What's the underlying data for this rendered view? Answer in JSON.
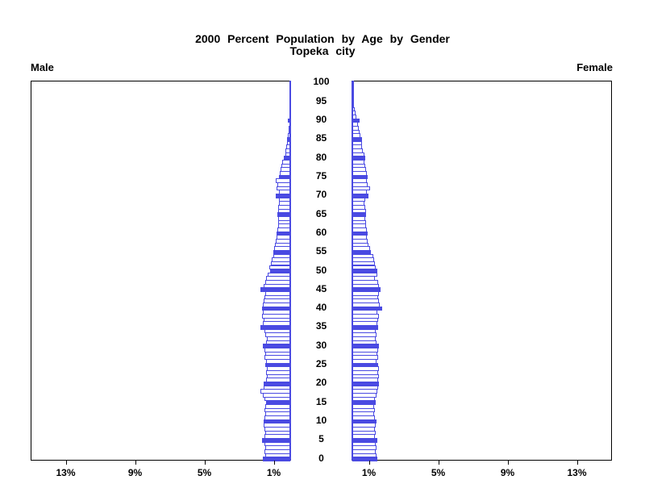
{
  "title": {
    "line1": "2000 Percent Population by Age by Gender",
    "line2": "Topeka city"
  },
  "panels": {
    "left_label": "Male",
    "right_label": "Female"
  },
  "axes": {
    "age_tick_labels": [
      "0",
      "5",
      "10",
      "15",
      "20",
      "25",
      "30",
      "35",
      "40",
      "45",
      "50",
      "55",
      "60",
      "65",
      "70",
      "75",
      "80",
      "85",
      "90",
      "95",
      "100"
    ],
    "left_tick_labels": [
      "13%",
      "9%",
      "5%",
      "1%"
    ],
    "left_tick_values": [
      13,
      9,
      5,
      1
    ],
    "right_tick_labels": [
      "1%",
      "5%",
      "9%",
      "13%"
    ],
    "right_tick_values": [
      1,
      5,
      9,
      13
    ]
  },
  "colors": {
    "bar_blue": "#4a4ae2",
    "axis_black": "#000000",
    "background": "#ffffff"
  },
  "chart_data": {
    "type": "bar",
    "subtype": "population-pyramid",
    "title": "2000 Percent Population by Age by Gender",
    "subtitle": "Topeka city",
    "left_series_label": "Male",
    "right_series_label": "Female",
    "unit": "percent of total population",
    "x_range_percent": [
      0,
      15
    ],
    "x_ticks_percent": [
      1,
      5,
      9,
      13
    ],
    "age_min": 0,
    "age_max": 100,
    "age_tick_step": 5,
    "highlight_rule": "bars for ages that are multiples of 5 are solid filled; other ages are outlined",
    "legend_position": "none",
    "grid": false,
    "series": [
      {
        "name": "Male",
        "values": [
          1.6,
          1.45,
          1.5,
          1.45,
          1.5,
          1.65,
          1.5,
          1.45,
          1.5,
          1.55,
          1.55,
          1.5,
          1.45,
          1.5,
          1.45,
          1.4,
          1.5,
          1.6,
          1.7,
          1.55,
          1.55,
          1.4,
          1.35,
          1.4,
          1.35,
          1.45,
          1.4,
          1.5,
          1.45,
          1.5,
          1.6,
          1.4,
          1.35,
          1.45,
          1.5,
          1.7,
          1.6,
          1.55,
          1.65,
          1.6,
          1.65,
          1.6,
          1.55,
          1.5,
          1.45,
          1.7,
          1.55,
          1.45,
          1.4,
          1.3,
          1.15,
          1.2,
          1.1,
          1.05,
          1.0,
          1.0,
          0.95,
          0.9,
          0.85,
          0.8,
          0.79,
          0.75,
          0.72,
          0.7,
          0.72,
          0.74,
          0.7,
          0.68,
          0.65,
          0.67,
          0.82,
          0.67,
          0.78,
          0.74,
          0.82,
          0.65,
          0.6,
          0.55,
          0.5,
          0.45,
          0.35,
          0.3,
          0.26,
          0.22,
          0.18,
          0.2,
          0.14,
          0.1,
          0.08,
          0.06,
          0.12,
          0.06,
          0.05,
          0.04,
          0.03,
          0.02,
          0.02,
          0.01,
          0.01,
          0.01,
          0.01
        ]
      },
      {
        "name": "Female",
        "values": [
          1.45,
          1.4,
          1.35,
          1.4,
          1.35,
          1.45,
          1.3,
          1.35,
          1.3,
          1.35,
          1.4,
          1.3,
          1.25,
          1.3,
          1.25,
          1.35,
          1.3,
          1.4,
          1.45,
          1.5,
          1.55,
          1.5,
          1.55,
          1.5,
          1.55,
          1.5,
          1.4,
          1.5,
          1.45,
          1.5,
          1.55,
          1.4,
          1.35,
          1.4,
          1.35,
          1.5,
          1.45,
          1.5,
          1.55,
          1.45,
          1.7,
          1.6,
          1.55,
          1.5,
          1.55,
          1.65,
          1.55,
          1.5,
          1.3,
          1.45,
          1.45,
          1.35,
          1.3,
          1.25,
          1.2,
          1.05,
          1.0,
          0.95,
          0.9,
          0.85,
          0.9,
          0.82,
          0.8,
          0.78,
          0.75,
          0.8,
          0.78,
          0.75,
          0.72,
          0.75,
          0.92,
          0.85,
          1.0,
          0.9,
          0.85,
          0.9,
          0.85,
          0.8,
          0.75,
          0.7,
          0.74,
          0.68,
          0.62,
          0.58,
          0.55,
          0.58,
          0.48,
          0.42,
          0.36,
          0.32,
          0.4,
          0.25,
          0.19,
          0.12,
          0.08,
          0.06,
          0.04,
          0.03,
          0.02,
          0.01,
          0.02
        ]
      }
    ]
  }
}
